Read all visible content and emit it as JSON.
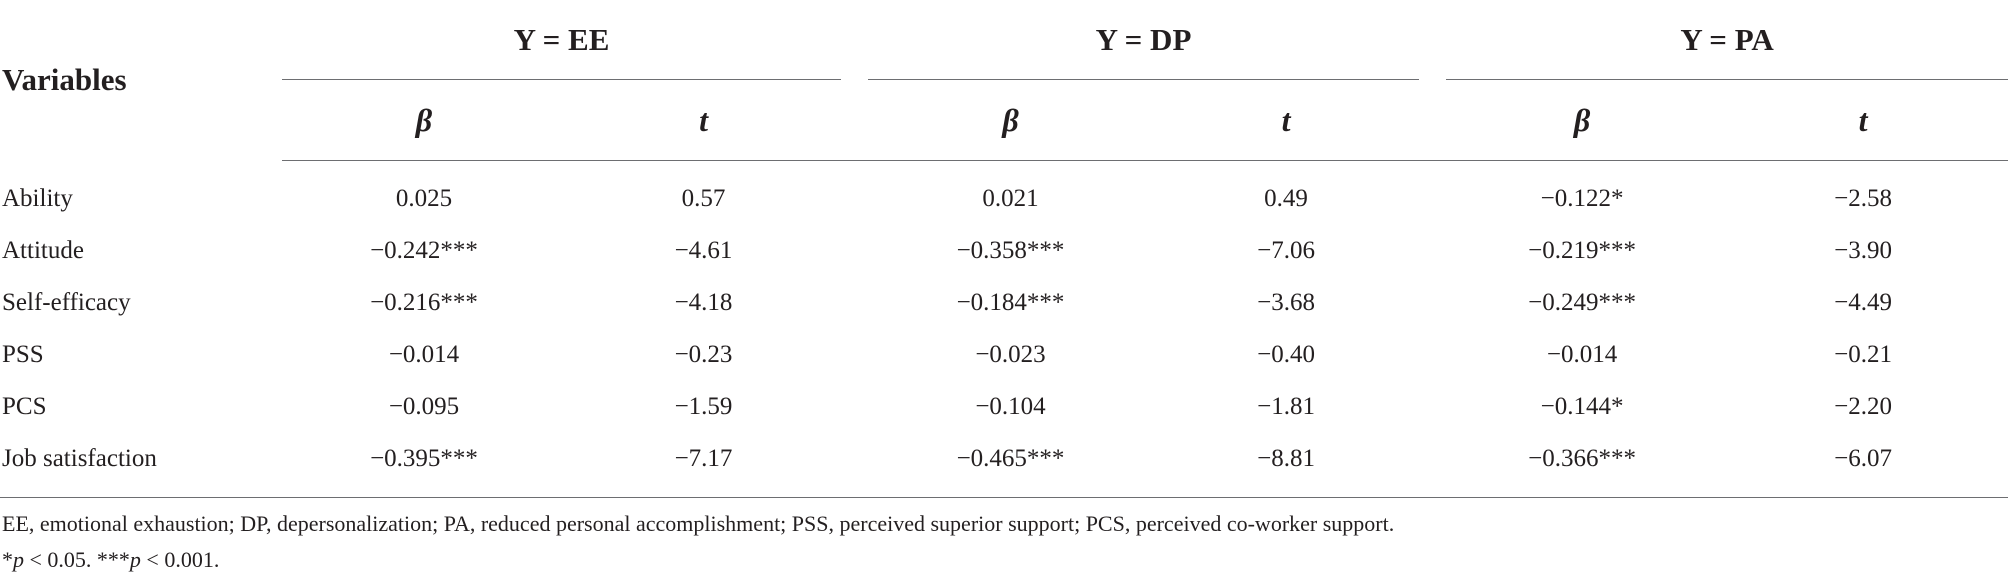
{
  "table": {
    "row_header": "Variables",
    "groups": [
      "Y = EE",
      "Y = DP",
      "Y = PA"
    ],
    "subheaders": [
      "β",
      "t",
      "β",
      "t",
      "β",
      "t"
    ],
    "rows": [
      {
        "label": "Ability",
        "values": [
          "0.025",
          "0.57",
          "0.021",
          "0.49",
          "−0.122*",
          "−2.58"
        ]
      },
      {
        "label": "Attitude",
        "values": [
          "−0.242***",
          "−4.61",
          "−0.358***",
          "−7.06",
          "−0.219***",
          "−3.90"
        ]
      },
      {
        "label": "Self-efficacy",
        "values": [
          "−0.216***",
          "−4.18",
          "−0.184***",
          "−3.68",
          "−0.249***",
          "−4.49"
        ]
      },
      {
        "label": "PSS",
        "values": [
          "−0.014",
          "−0.23",
          "−0.023",
          "−0.40",
          "−0.014",
          "−0.21"
        ]
      },
      {
        "label": "PCS",
        "values": [
          "−0.095",
          "−1.59",
          "−0.104",
          "−1.81",
          "−0.144*",
          "−2.20"
        ]
      },
      {
        "label": "Job satisfaction",
        "values": [
          "−0.395***",
          "−7.17",
          "−0.465***",
          "−8.81",
          "−0.366***",
          "−6.07"
        ]
      }
    ]
  },
  "notes": {
    "abbreviations": "EE, emotional exhaustion; DP, depersonalization; PA, reduced personal accomplishment; PSS, perceived superior support; PCS, perceived co-worker support.",
    "sig1_prefix": "*",
    "sig1_var": "p",
    "sig1_text": " < 0.05. ***",
    "sig2_var": "p",
    "sig2_text": " < 0.001."
  }
}
